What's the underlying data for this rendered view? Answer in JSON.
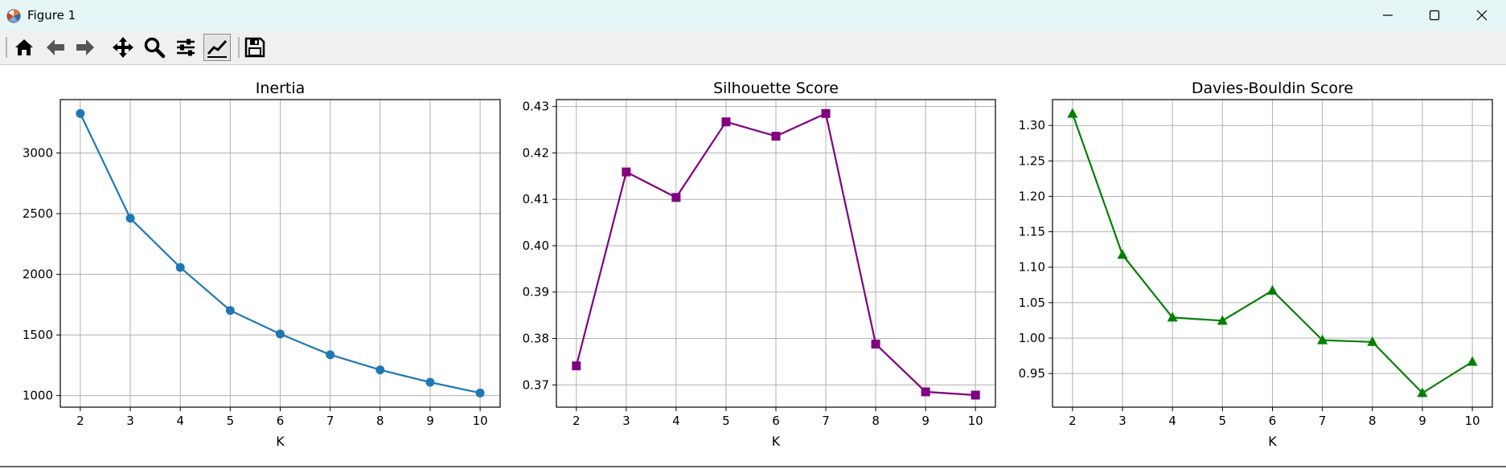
{
  "window": {
    "title": "Figure 1"
  },
  "toolbar": {
    "buttons": [
      {
        "name": "home",
        "icon": "home-icon"
      },
      {
        "name": "back",
        "icon": "arrow-left-icon"
      },
      {
        "name": "forward",
        "icon": "arrow-right-icon"
      },
      {
        "name": "pan",
        "icon": "move-icon"
      },
      {
        "name": "zoom",
        "icon": "magnifier-icon"
      },
      {
        "name": "configure-subplots",
        "icon": "sliders-icon"
      },
      {
        "name": "edit-axis",
        "icon": "line-chart-icon"
      },
      {
        "name": "save",
        "icon": "floppy-disk-icon"
      }
    ]
  },
  "chart_data": [
    {
      "type": "line",
      "title": "Inertia",
      "xlabel": "K",
      "ylabel": "",
      "x": [
        2,
        3,
        4,
        5,
        6,
        7,
        8,
        9,
        10
      ],
      "values": [
        3325,
        2462,
        2057,
        1702,
        1508,
        1337,
        1212,
        1110,
        1022
      ],
      "xlim": [
        1.6,
        10.4
      ],
      "ylim": [
        905,
        3440
      ],
      "yticks": [
        1000,
        1500,
        2000,
        2500,
        3000
      ],
      "ytick_labels": [
        "1000",
        "1500",
        "2000",
        "2500",
        "3000"
      ],
      "color": "#1f77b4",
      "marker": "circle",
      "grid": true
    },
    {
      "type": "line",
      "title": "Silhouette Score",
      "xlabel": "K",
      "ylabel": "",
      "x": [
        2,
        3,
        4,
        5,
        6,
        7,
        8,
        9,
        10
      ],
      "values": [
        0.3741,
        0.4159,
        0.4104,
        0.4267,
        0.4236,
        0.4285,
        0.3788,
        0.3685,
        0.3678
      ],
      "xlim": [
        1.6,
        10.4
      ],
      "ylim": [
        0.3652,
        0.4315
      ],
      "yticks": [
        0.37,
        0.38,
        0.39,
        0.4,
        0.41,
        0.42,
        0.43
      ],
      "ytick_labels": [
        "0.37",
        "0.38",
        "0.39",
        "0.40",
        "0.41",
        "0.42",
        "0.43"
      ],
      "color": "#800080",
      "marker": "square",
      "grid": true
    },
    {
      "type": "line",
      "title": "Davies-Bouldin Score",
      "xlabel": "K",
      "ylabel": "",
      "x": [
        2,
        3,
        4,
        5,
        6,
        7,
        8,
        9,
        10
      ],
      "values": [
        1.3165,
        1.1175,
        1.029,
        1.0245,
        1.067,
        0.997,
        0.9945,
        0.9225,
        0.9665
      ],
      "xlim": [
        1.6,
        10.4
      ],
      "ylim": [
        0.9025,
        1.3365
      ],
      "yticks": [
        0.95,
        1.0,
        1.05,
        1.1,
        1.15,
        1.2,
        1.25,
        1.3
      ],
      "ytick_labels": [
        "0.95",
        "1.00",
        "1.05",
        "1.10",
        "1.15",
        "1.20",
        "1.25",
        "1.30"
      ],
      "color": "#008000",
      "marker": "triangle",
      "grid": true
    }
  ],
  "x_tick_labels": [
    "2",
    "3",
    "4",
    "5",
    "6",
    "7",
    "8",
    "9",
    "10"
  ]
}
